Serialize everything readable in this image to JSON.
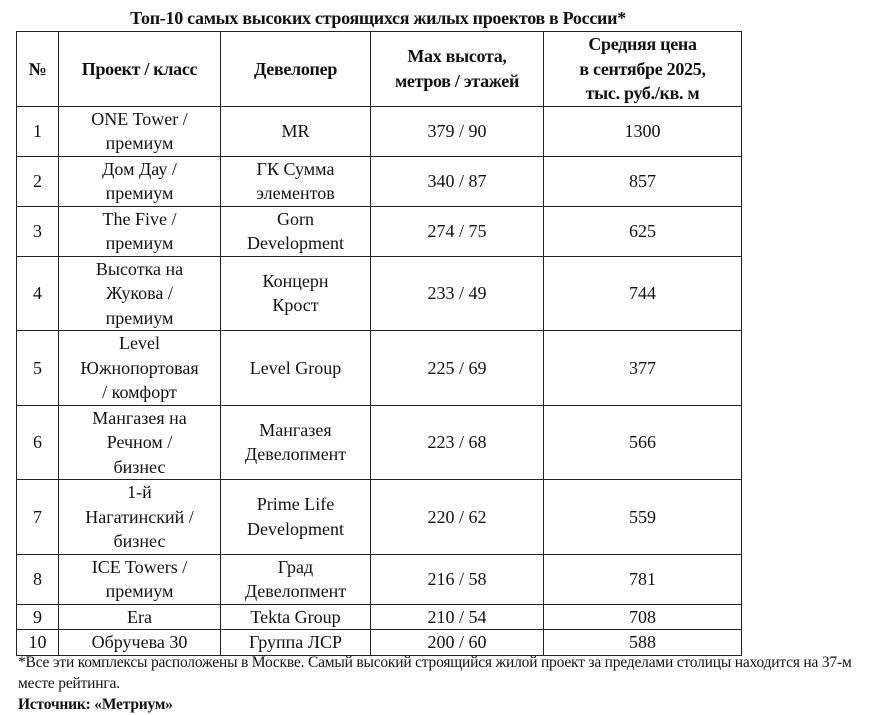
{
  "title": "Топ-10 самых высоких строящихся жилых проектов в России*",
  "table": {
    "headers": [
      "№",
      "Проект / класс",
      "Девелопер",
      "Max высота,\nметров / этажей",
      "Средняя цена\nв сентябре 2025,\nтыс. руб./кв. м"
    ],
    "rows": [
      {
        "n": "1",
        "project": "ONE Tower /\nпремиум",
        "developer": "MR",
        "height": "379 / 90",
        "price": "1300"
      },
      {
        "n": "2",
        "project": "Дом Дау /\nпремиум",
        "developer": "ГК Сумма\nэлементов",
        "height": "340 / 87",
        "price": "857"
      },
      {
        "n": "3",
        "project": "The Five /\nпремиум",
        "developer": "Gorn\nDevelopment",
        "height": "274 / 75",
        "price": "625"
      },
      {
        "n": "4",
        "project": "Высотка на\nЖукова /\nпремиум",
        "developer": "Концерн\nКрост",
        "height": "233 / 49",
        "price": "744"
      },
      {
        "n": "5",
        "project": "Level\nЮжнопортовая\n/ комфорт",
        "developer": "Level Group",
        "height": "225 / 69",
        "price": "377"
      },
      {
        "n": "6",
        "project": "Мангазея на\nРечном /\nбизнес",
        "developer": "Мангазея\nДевелопмент",
        "height": "223 / 68",
        "price": "566"
      },
      {
        "n": "7",
        "project": "1-й\nНагатинский /\nбизнес",
        "developer": "Prime Life\nDevelopment",
        "height": "220 / 62",
        "price": "559"
      },
      {
        "n": "8",
        "project": "ICE Towers /\nпремиум",
        "developer": "Град\nДевелопмент",
        "height": "216 / 58",
        "price": "781"
      },
      {
        "n": "9",
        "project": "Era",
        "developer": "Tekta Group",
        "height": "210 / 54",
        "price": "708"
      },
      {
        "n": "10",
        "project": "Обручева 30",
        "developer": "Группа ЛСР",
        "height": "200 / 60",
        "price": "588"
      }
    ]
  },
  "footnote": "*Все эти комплексы расположены в Москве. Самый высокий строящийся жилой проект за пределами столицы находится на 37-м месте рейтинга.",
  "source": "Источник: «Метриум»"
}
